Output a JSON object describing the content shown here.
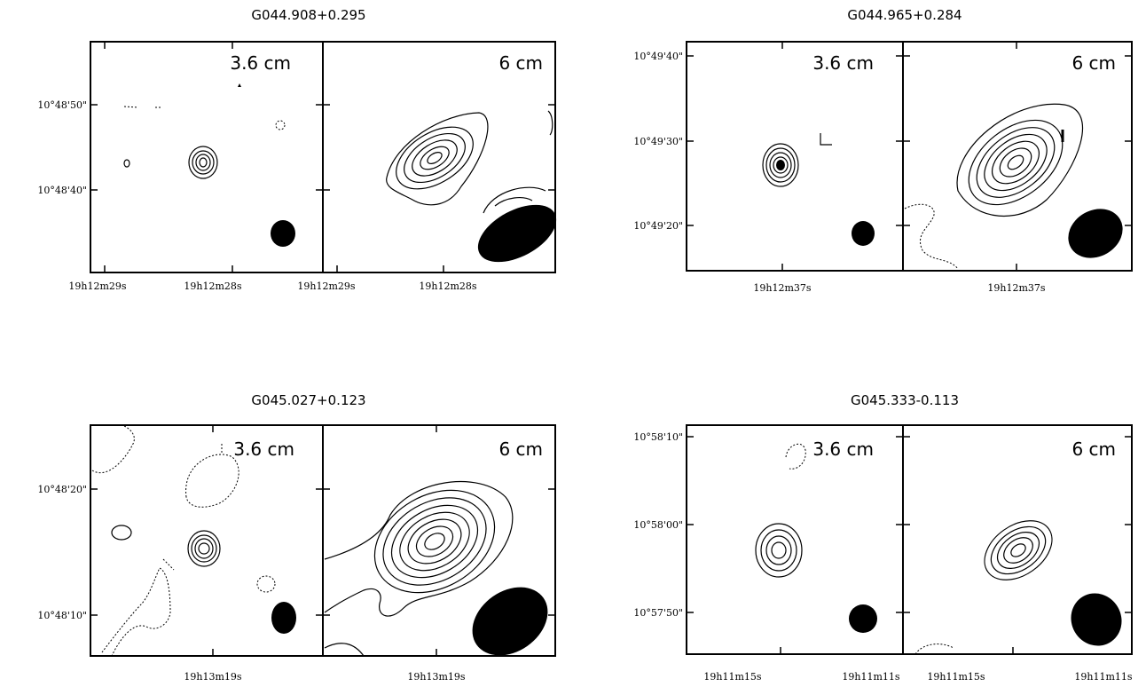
{
  "figures": [
    {
      "title": "G044.908+0.295",
      "left_band": "3.6 cm",
      "right_band": "6 cm",
      "dec_ticks": [
        "10°48'50\"",
        "10°48'40\""
      ],
      "ra_ticks": [
        "19h12m29s",
        "19h12m28s",
        "19h12m29s",
        "19h12m28s"
      ]
    },
    {
      "title": "G044.965+0.284",
      "left_band": "3.6 cm",
      "right_band": "6 cm",
      "dec_ticks": [
        "10°49'40\"",
        "10°49'30\"",
        "10°49'20\""
      ],
      "ra_ticks": [
        "19h12m37s",
        "19h12m37s"
      ]
    },
    {
      "title": "G045.027+0.123",
      "left_band": "3.6 cm",
      "right_band": "6 cm",
      "dec_ticks": [
        "10°48'20\"",
        "10°48'10\""
      ],
      "ra_ticks": [
        "19h13m19s",
        "19h13m19s"
      ]
    },
    {
      "title": "G045.333-0.113",
      "left_band": "3.6 cm",
      "right_band": "6 cm",
      "dec_ticks": [
        "10°58'10\"",
        "10°58'00\"",
        "10°57'50\""
      ],
      "ra_ticks": [
        "19h11m15s",
        "19h11m11s",
        "19h11m15s",
        "19h11m11s"
      ]
    }
  ]
}
